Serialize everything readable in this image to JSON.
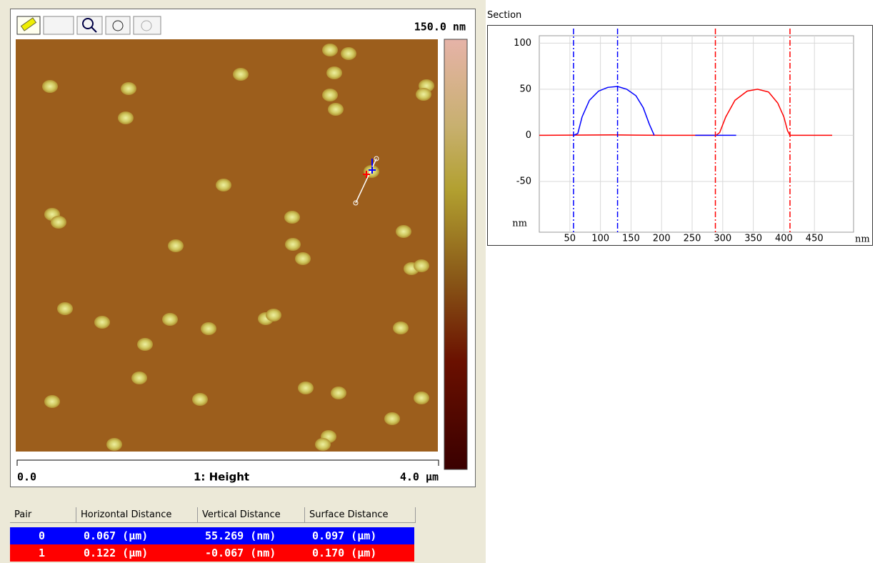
{
  "image_panel": {
    "scale_max": "150.0 nm",
    "x_start": "0.0",
    "channel": "1: Height",
    "x_end": "4.0 µm"
  },
  "section_title": "Section",
  "chart_data": {
    "type": "line",
    "y_label": "nm",
    "x_label": "nm",
    "xlim": [
      0,
      514
    ],
    "ylim": [
      -105,
      108
    ],
    "xticks": [
      50,
      100,
      150,
      200,
      250,
      300,
      350,
      400,
      450
    ],
    "yticks": [
      100,
      50,
      0,
      -50
    ],
    "grid": true,
    "series": [
      {
        "color": "#ff0000",
        "x": [
          0,
          120,
          200,
          289,
          295,
          305,
          320,
          340,
          357,
          375,
          390,
          400,
          406,
          410,
          420,
          479
        ],
        "values": [
          0,
          0.5,
          0,
          0,
          3,
          20,
          38,
          48,
          50,
          47,
          35,
          20,
          5,
          0,
          0,
          0
        ]
      },
      {
        "color": "#0000ff",
        "x": [
          56,
          63,
          70,
          82,
          97,
          112,
          128,
          143,
          158,
          170,
          180,
          188,
          220,
          255,
          322
        ],
        "values": [
          0,
          2,
          20,
          38,
          48,
          52,
          53,
          50,
          43,
          30,
          12,
          0,
          null,
          0,
          0
        ]
      }
    ],
    "cursors": [
      {
        "color": "#0000ff",
        "x": 56
      },
      {
        "color": "#0000ff",
        "x": 128
      },
      {
        "color": "#ff0000",
        "x": 288
      },
      {
        "color": "#ff0000",
        "x": 410
      }
    ]
  },
  "table": {
    "header": [
      "Pair",
      "Horizontal Distance",
      "Vertical Distance",
      "Surface Distance"
    ],
    "rows": [
      [
        "0",
        "0.067 (µm)",
        "55.269 (nm)",
        "0.097 (µm)"
      ],
      [
        "1",
        "0.122 (µm)",
        "-0.067 (nm)",
        "0.170 (µm)"
      ]
    ]
  }
}
